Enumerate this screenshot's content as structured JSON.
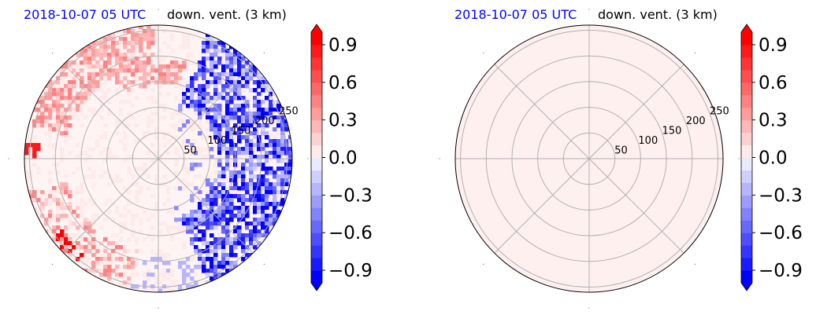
{
  "panels": [
    {
      "title_date": "2018-10-07 05 UTC",
      "title_var": "down. vent. (3 km)",
      "chart_data": {
        "type": "heatmap",
        "projection": "polar",
        "title": "down. vent. (3 km)",
        "radial_ticks": [
          "50",
          "100",
          "150",
          "200",
          "250"
        ],
        "radial_tick_values": [
          50,
          100,
          150,
          200,
          250
        ],
        "r_max": 260,
        "grid": true,
        "colorbar": {
          "ticks": [
            "0.9",
            "0.6",
            "0.3",
            "0.0",
            "−0.3",
            "−0.6",
            "−0.9"
          ],
          "tick_values": [
            0.9,
            0.6,
            0.3,
            0.0,
            -0.3,
            -0.6,
            -0.9
          ],
          "range": [
            -1.0,
            1.0
          ],
          "cmap": "bwr"
        },
        "field_description_regions": [
          {
            "sector": "east",
            "sign": "negative",
            "magnitude": "strong"
          },
          {
            "sector": "north-west rim",
            "sign": "positive",
            "magnitude": "moderate"
          },
          {
            "sector": "south-west rim",
            "sign": "positive",
            "magnitude": "moderate"
          },
          {
            "sector": "interior",
            "sign": "near zero",
            "magnitude": "weak"
          }
        ]
      }
    },
    {
      "title_date": "2018-10-07 05 UTC",
      "title_var": "down. vent. (3 km)",
      "chart_data": {
        "type": "heatmap",
        "projection": "polar",
        "title": "down. vent. (3 km)",
        "radial_ticks": [
          "50",
          "100",
          "150",
          "200",
          "250"
        ],
        "radial_tick_values": [
          50,
          100,
          150,
          200,
          250
        ],
        "r_max": 260,
        "grid": true,
        "colorbar": {
          "ticks": [
            "0.9",
            "0.6",
            "0.3",
            "0.0",
            "−0.3",
            "−0.6",
            "−0.9"
          ],
          "tick_values": [
            0.9,
            0.6,
            0.3,
            0.0,
            -0.3,
            -0.6,
            -0.9
          ],
          "range": [
            -1.0,
            1.0
          ],
          "cmap": "bwr"
        },
        "uniform_value": 0.03
      }
    }
  ],
  "colors": {
    "title_date": "#0000ff",
    "grid": "#b0b0b0",
    "cmap_levels": [
      "#0000ff",
      "#1a1aff",
      "#3434ff",
      "#4e4eff",
      "#6868ff",
      "#8282ff",
      "#9c9cff",
      "#b6b6ff",
      "#d0d0ff",
      "#eaeaff",
      "#ffeaea",
      "#ffd0d0",
      "#ffb6b6",
      "#ff9c9c",
      "#ff8282",
      "#ff6868",
      "#ff4e4e",
      "#ff3434",
      "#ff1a1a",
      "#ff0000"
    ]
  }
}
